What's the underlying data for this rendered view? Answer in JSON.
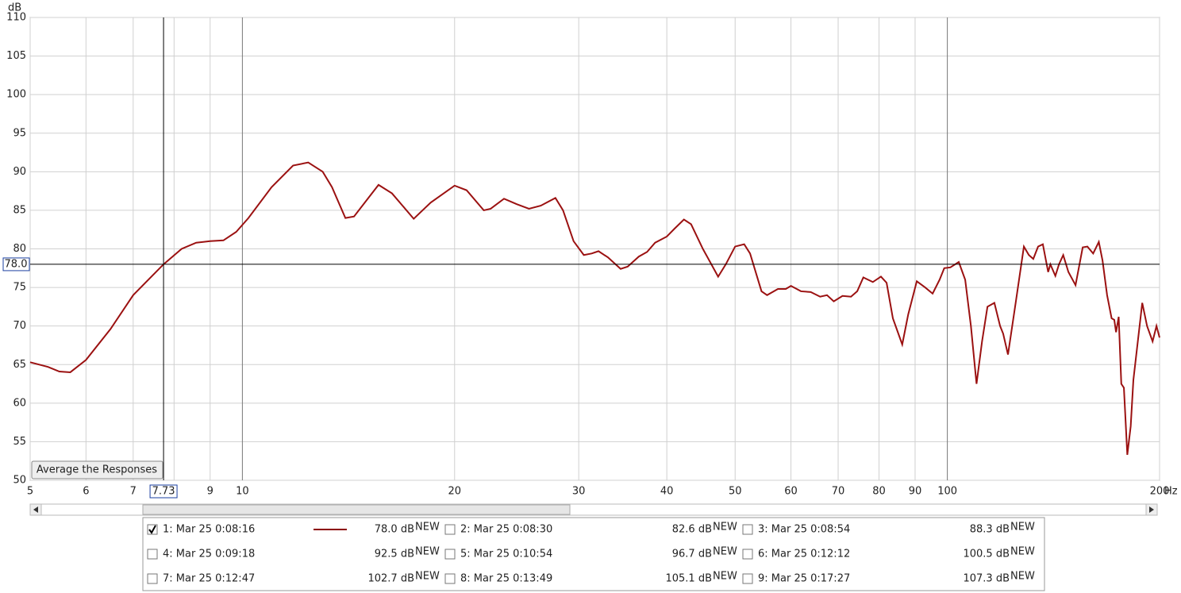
{
  "chart_data": {
    "type": "line",
    "xscale": "log",
    "x_label": "Hz",
    "y_label": "dB",
    "xlim": [
      5,
      200
    ],
    "ylim": [
      50,
      110
    ],
    "xticks": [
      5,
      6,
      7,
      8,
      9,
      10,
      20,
      30,
      40,
      50,
      60,
      70,
      80,
      90,
      100,
      200
    ],
    "yticks": [
      50,
      55,
      60,
      65,
      70,
      75,
      80,
      85,
      90,
      95,
      100,
      105,
      110
    ],
    "grid": true,
    "cursor": {
      "x": 7.73,
      "y": {
        "value": 78,
        "label": "78.0"
      }
    },
    "x": [
      5,
      5.3,
      5.5,
      5.7,
      6.0,
      6.5,
      7.0,
      7.73,
      8.2,
      8.6,
      9.0,
      9.4,
      9.8,
      10.2,
      11.0,
      11.8,
      12.4,
      13.0,
      13.4,
      14.0,
      14.4,
      15.6,
      16.3,
      17.5,
      18.5,
      20.0,
      20.8,
      22.0,
      22.5,
      23.5,
      24.5,
      25.5,
      26.5,
      27.8,
      28.5,
      29.5,
      30.5,
      31.3,
      32.0,
      33.0,
      34.4,
      35.2,
      36.5,
      37.5,
      38.5,
      40.0,
      41.0,
      42.3,
      43.3,
      45.0,
      47.3,
      48.5,
      50.0,
      51.5,
      52.5,
      54.5,
      55.5,
      57.5,
      59.0,
      60.0,
      62.0,
      64.0,
      66.0,
      67.5,
      69.0,
      71.0,
      73.0,
      74.5,
      76.0,
      78.4,
      80.5,
      82.0,
      83.7,
      86.3,
      88.0,
      90.5,
      93.0,
      95.3,
      97.5,
      99.0,
      101.0,
      103.8,
      106.0,
      108.0,
      110.0,
      112.0,
      114.0,
      116.6,
      118.8,
      120.0,
      121.9,
      125.0,
      128.4,
      130.5,
      132.4,
      134.5,
      136.6,
      139.0,
      140.0,
      142.3,
      144.0,
      146.0,
      148.5,
      152.0,
      155.6,
      158.0,
      161.0,
      164.0,
      166.0,
      168.5,
      171.0,
      172.5,
      173.5,
      175.0,
      176.5,
      178.0,
      180.0,
      182.0,
      183.6,
      189.0,
      192.0,
      195.5,
      198.0,
      200.0
    ],
    "series": [
      {
        "name": "1: Mar 25 0:08:16",
        "color": "#9b1111",
        "values": [
          65.3,
          64.7,
          64.1,
          64.0,
          65.6,
          69.6,
          74.0,
          78.0,
          80.0,
          80.8,
          81.0,
          81.1,
          82.2,
          84.0,
          88.0,
          90.8,
          91.2,
          90.0,
          88.0,
          84.0,
          84.2,
          88.3,
          87.2,
          83.9,
          86.0,
          88.2,
          87.6,
          85.0,
          85.2,
          86.5,
          85.8,
          85.2,
          85.6,
          86.6,
          85.0,
          81.0,
          79.2,
          79.4,
          79.7,
          78.9,
          77.4,
          77.7,
          79.0,
          79.6,
          80.8,
          81.6,
          82.6,
          83.8,
          83.2,
          80.0,
          76.4,
          78.0,
          80.3,
          80.6,
          79.4,
          74.5,
          74.0,
          74.8,
          74.8,
          75.2,
          74.5,
          74.4,
          73.8,
          74.0,
          73.2,
          73.9,
          73.8,
          74.5,
          76.3,
          75.7,
          76.4,
          75.6,
          71.0,
          67.6,
          71.5,
          75.8,
          75.0,
          74.2,
          76.0,
          77.5,
          77.6,
          78.3,
          76.0,
          70.0,
          62.5,
          68.0,
          72.5,
          73.0,
          70.0,
          69.0,
          66.3,
          73.0,
          80.3,
          79.2,
          78.7,
          80.3,
          80.6,
          77.0,
          78.0,
          76.5,
          78.0,
          79.2,
          77.0,
          75.3,
          80.2,
          80.3,
          79.4,
          80.9,
          78.5,
          74.0,
          71.0,
          70.8,
          69.2,
          71.2,
          62.5,
          62.0,
          53.3,
          57.0,
          63.0,
          73.0,
          70.0,
          68.0,
          70.0,
          68.5
        ]
      }
    ]
  },
  "button": "Average the Responses",
  "legend": {
    "badge": "NEW",
    "entries": [
      {
        "name": "1: Mar 25 0:08:16",
        "level": "78.0 dB",
        "color": "#8b0000",
        "checked": true
      },
      {
        "name": "2: Mar 25 0:08:30",
        "level": "82.6 dB",
        "color": "#c8961e",
        "checked": false
      },
      {
        "name": "3: Mar 25 0:08:54",
        "level": "88.3 dB",
        "color": "#cccc00",
        "checked": false
      },
      {
        "name": "4: Mar 25 0:09:18",
        "level": "92.5 dB",
        "color": "#33cc33",
        "checked": false
      },
      {
        "name": "5: Mar 25 0:10:54",
        "level": "96.7 dB",
        "color": "#22c8c8",
        "checked": false
      },
      {
        "name": "6: Mar 25 0:12:12",
        "level": "100.5 dB",
        "color": "#1044cc",
        "checked": false
      },
      {
        "name": "7: Mar 25 0:12:47",
        "level": "102.7 dB",
        "color": "#6a10b0",
        "checked": false
      },
      {
        "name": "8: Mar 25 0:13:49",
        "level": "105.1 dB",
        "color": "#ee66dd",
        "checked": false
      },
      {
        "name": "9: Mar 25 0:17:27",
        "level": "107.3 dB",
        "color": "#000000",
        "checked": false
      }
    ]
  }
}
